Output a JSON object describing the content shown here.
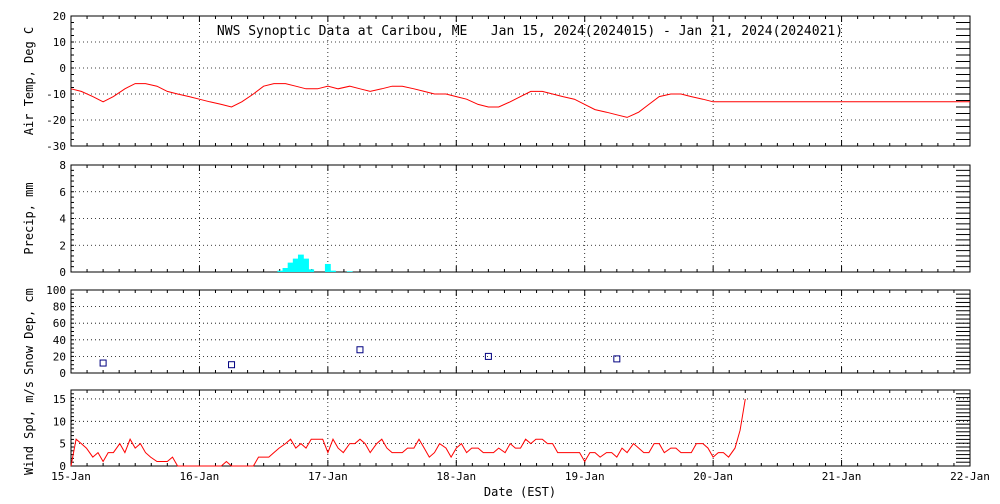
{
  "title": "NWS Synoptic Data at Caribou, ME   Jan 15, 2024(2024015) - Jan 21, 2024(2024021)",
  "x_axis": {
    "label": "Date (EST)",
    "ticks": [
      "15-Jan",
      "16-Jan",
      "17-Jan",
      "18-Jan",
      "19-Jan",
      "20-Jan",
      "21-Jan",
      "22-Jan"
    ],
    "range_days": [
      0,
      7
    ]
  },
  "colors": {
    "temp": "#ff0000",
    "precip": "#00ffff",
    "snow": "#000080",
    "wind": "#ff0000",
    "grid": "#000000"
  },
  "chart_data": [
    {
      "type": "line",
      "panel": "temp",
      "ylabel": "Air Temp, Deg C",
      "ylim": [
        -30,
        20
      ],
      "yticks": [
        20,
        10,
        0,
        -10,
        -20,
        -30
      ],
      "grid": true,
      "x_days": [
        0.0,
        0.08,
        0.17,
        0.25,
        0.33,
        0.42,
        0.5,
        0.58,
        0.67,
        0.75,
        0.83,
        0.92,
        1.0,
        1.08,
        1.17,
        1.25,
        1.33,
        1.42,
        1.5,
        1.58,
        1.67,
        1.75,
        1.83,
        1.92,
        2.0,
        2.08,
        2.17,
        2.25,
        2.33,
        2.42,
        2.5,
        2.58,
        2.67,
        2.75,
        2.83,
        2.92,
        3.0,
        3.08,
        3.17,
        3.25,
        3.33,
        3.42,
        3.5,
        3.58,
        3.67,
        3.75,
        3.83,
        3.92,
        4.0,
        4.08,
        4.17,
        4.25,
        4.33,
        4.42,
        4.5,
        4.58,
        4.67,
        4.75,
        4.83,
        4.92,
        5.0,
        5.08,
        5.17,
        5.5,
        6.0,
        6.5,
        7.0
      ],
      "values": [
        -8,
        -9,
        -11,
        -13,
        -11,
        -8,
        -6,
        -6,
        -7,
        -9,
        -10,
        -11,
        -12,
        -13,
        -14,
        -15,
        -13,
        -10,
        -7,
        -6,
        -6,
        -7,
        -8,
        -8,
        -7,
        -8,
        -7,
        -8,
        -9,
        -8,
        -7,
        -7,
        -8,
        -9,
        -10,
        -10,
        -11,
        -12,
        -14,
        -15,
        -15,
        -13,
        -11,
        -9,
        -9,
        -10,
        -11,
        -12,
        -14,
        -16,
        -17,
        -18,
        -19,
        -17,
        -14,
        -11,
        -10,
        -10,
        -11,
        -12,
        -13,
        -13,
        -13,
        -13,
        -13,
        -13,
        -13
      ]
    },
    {
      "type": "bar",
      "panel": "precip",
      "ylabel": "Precip, mm",
      "ylim": [
        0,
        8
      ],
      "yticks": [
        8,
        6,
        4,
        2,
        0
      ],
      "grid": true,
      "x_days": [
        1.63,
        1.67,
        1.71,
        1.75,
        1.79,
        1.83,
        1.87,
        2.0,
        2.04,
        2.17
      ],
      "values": [
        0.1,
        0.3,
        0.7,
        1.0,
        1.3,
        1.0,
        0.2,
        0.6,
        0.1,
        0.05
      ]
    },
    {
      "type": "scatter",
      "panel": "snow",
      "ylabel": "Snow Dep, cm",
      "ylim": [
        0,
        100
      ],
      "yticks": [
        100,
        80,
        60,
        40,
        20,
        0
      ],
      "grid": true,
      "x_days": [
        0.25,
        1.25,
        2.25,
        3.25,
        4.25
      ],
      "values": [
        12,
        10,
        28,
        20,
        17
      ]
    },
    {
      "type": "line",
      "panel": "wind",
      "ylabel": "Wind Spd, m/s",
      "ylim": [
        0,
        17
      ],
      "yticks": [
        15,
        10,
        5,
        0
      ],
      "grid": true,
      "x_days": [
        0.0,
        0.04,
        0.08,
        0.12,
        0.17,
        0.21,
        0.25,
        0.29,
        0.33,
        0.38,
        0.42,
        0.46,
        0.5,
        0.54,
        0.58,
        0.62,
        0.67,
        0.71,
        0.75,
        0.79,
        0.83,
        0.87,
        0.92,
        0.96,
        1.0,
        1.04,
        1.08,
        1.12,
        1.17,
        1.21,
        1.25,
        1.29,
        1.33,
        1.38,
        1.42,
        1.46,
        1.5,
        1.54,
        1.58,
        1.62,
        1.67,
        1.71,
        1.75,
        1.79,
        1.83,
        1.87,
        1.92,
        1.96,
        2.0,
        2.04,
        2.08,
        2.12,
        2.17,
        2.21,
        2.25,
        2.29,
        2.33,
        2.38,
        2.42,
        2.46,
        2.5,
        2.54,
        2.58,
        2.62,
        2.67,
        2.71,
        2.75,
        2.79,
        2.83,
        2.87,
        2.92,
        2.96,
        3.0,
        3.04,
        3.08,
        3.12,
        3.17,
        3.21,
        3.25,
        3.29,
        3.33,
        3.38,
        3.42,
        3.46,
        3.5,
        3.54,
        3.58,
        3.62,
        3.67,
        3.71,
        3.75,
        3.79,
        3.83,
        3.87,
        3.92,
        3.96,
        4.0,
        4.04,
        4.08,
        4.12,
        4.17,
        4.21,
        4.25,
        4.29,
        4.33,
        4.38,
        4.42,
        4.46,
        4.5,
        4.54,
        4.58,
        4.62,
        4.67,
        4.71,
        4.75,
        4.79,
        4.83,
        4.87,
        4.92,
        4.96,
        5.0,
        5.04,
        5.08,
        5.12,
        5.17,
        5.21,
        5.25
      ],
      "values": [
        0,
        6,
        5,
        4,
        2,
        3,
        1,
        3,
        3,
        5,
        3,
        6,
        4,
        5,
        3,
        2,
        1,
        1,
        1,
        2,
        0,
        0,
        0,
        0,
        0,
        0,
        0,
        0,
        0,
        1,
        0,
        0,
        0,
        0,
        0,
        2,
        2,
        2,
        3,
        4,
        5,
        6,
        4,
        5,
        4,
        6,
        6,
        6,
        3,
        6,
        4,
        3,
        5,
        5,
        6,
        5,
        3,
        5,
        6,
        4,
        3,
        3,
        3,
        4,
        4,
        6,
        4,
        2,
        3,
        5,
        4,
        2,
        4,
        5,
        3,
        4,
        4,
        3,
        3,
        3,
        4,
        3,
        5,
        4,
        4,
        6,
        5,
        6,
        6,
        5,
        5,
        3,
        3,
        3,
        3,
        3,
        1,
        3,
        3,
        2,
        3,
        3,
        2,
        4,
        3,
        5,
        4,
        3,
        3,
        5,
        5,
        3,
        4,
        4,
        3,
        3,
        3,
        5,
        5,
        4,
        2,
        3,
        3,
        2,
        4,
        8,
        15
      ]
    }
  ]
}
